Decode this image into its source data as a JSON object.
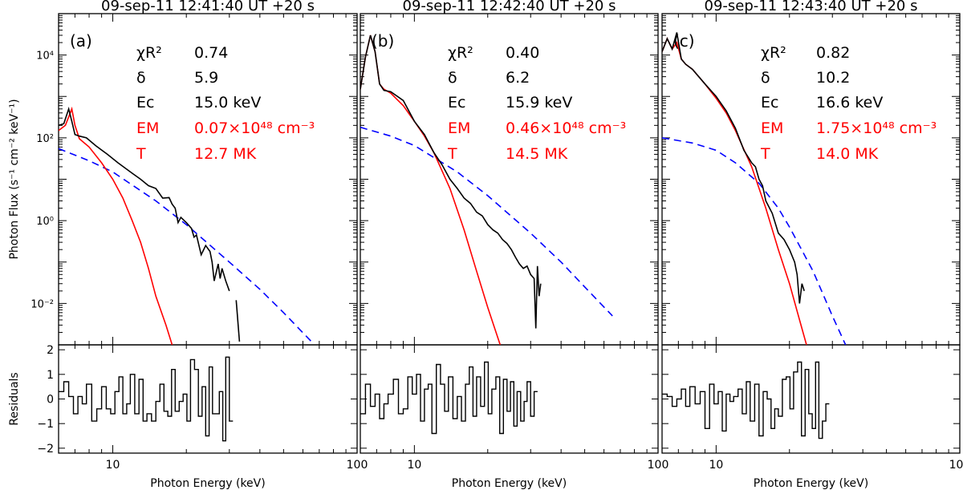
{
  "chart_data": [
    {
      "type": "line",
      "panel_label": "(a)",
      "title": "09-sep-11 12:41:40 UT +20 s",
      "xlabel": "Photon Energy (keV)",
      "ylabel": "Photon Flux (s⁻¹ cm⁻² keV⁻¹)",
      "residuals_ylabel": "Residuals",
      "xscale": "log",
      "yscale": "log",
      "xlim": [
        6,
        100
      ],
      "ylim": [
        0.001,
        100000
      ],
      "residuals_ylim": [
        -2.2,
        2.2
      ],
      "x_tick_labels": [
        "10",
        "100"
      ],
      "y_tick_labels": [
        "10⁻²",
        "10⁰",
        "10²",
        "10⁴"
      ],
      "residual_tick_labels": [
        "2",
        "1",
        "0",
        "−1",
        "−2"
      ],
      "legend": {
        "chi_label": "χR²",
        "chi_value": "0.74",
        "delta_label": "δ",
        "delta_value": "5.9",
        "ec_label": "Ec",
        "ec_value": "15.0 keV",
        "em_label": "EM",
        "em_value": "0.07×10⁴⁸ cm⁻³",
        "t_label": "T",
        "t_value": "12.7 MK"
      },
      "thermal": {
        "x": [
          6.0,
          6.4,
          6.8,
          7.0,
          7.3,
          8.0,
          9.0,
          10.0,
          11.0,
          12.0,
          13.0,
          14.0,
          15.0,
          16.5,
          17.5
        ],
        "y": [
          150,
          200,
          500,
          200,
          95,
          60,
          25,
          10,
          3.5,
          1.0,
          0.3,
          0.07,
          0.015,
          0.003,
          0.001
        ]
      },
      "nonthermal": {
        "x": [
          6,
          8,
          10,
          15,
          20,
          30,
          40,
          50,
          65
        ],
        "y": [
          55,
          28,
          15,
          3.0,
          0.8,
          0.1,
          0.022,
          0.006,
          0.0012
        ]
      },
      "observed": {
        "x": [
          6.0,
          6.3,
          6.6,
          6.8,
          7.0,
          7.3,
          7.8,
          8.5,
          9.5,
          10.5,
          12.0,
          13.0,
          14.0,
          15.0,
          16.0,
          17.0,
          17.5,
          18.0,
          18.5,
          19.0,
          20.0,
          21.0,
          21.5,
          22.0,
          23.0,
          24.0,
          25.0,
          25.5,
          26.0,
          27.0,
          27.5,
          28.0,
          29.0,
          30.0
        ],
        "y": [
          200,
          220,
          500,
          250,
          120,
          110,
          100,
          65,
          40,
          25,
          14,
          10,
          7,
          6,
          3.5,
          3.6,
          2.5,
          2.0,
          0.9,
          1.2,
          0.9,
          0.65,
          0.4,
          0.45,
          0.15,
          0.25,
          0.18,
          0.1,
          0.035,
          0.09,
          0.04,
          0.07,
          0.035,
          0.02
        ]
      },
      "observed_tail": {
        "x": [
          32.0,
          33.0
        ],
        "y": [
          0.012,
          0.0012
        ]
      },
      "residuals": {
        "x": [
          6.0,
          6.3,
          6.6,
          6.9,
          7.2,
          7.5,
          7.8,
          8.2,
          8.6,
          9.0,
          9.4,
          9.8,
          10.2,
          10.6,
          11.0,
          11.4,
          11.8,
          12.3,
          12.8,
          13.3,
          13.8,
          14.4,
          15.0,
          15.6,
          16.2,
          16.8,
          17.4,
          18.0,
          18.7,
          19.4,
          20.1,
          20.8,
          21.6,
          22.4,
          23.2,
          24.0,
          24.8,
          25.6,
          26.4,
          27.3,
          28.2,
          29.0,
          30.0
        ],
        "y": [
          0.3,
          0.7,
          0.1,
          -0.6,
          0.1,
          -0.2,
          0.6,
          -0.9,
          -0.4,
          0.5,
          -0.4,
          -0.6,
          0.3,
          0.9,
          -0.6,
          -0.2,
          1.0,
          -0.6,
          0.8,
          -0.9,
          -0.6,
          -0.9,
          -0.1,
          0.6,
          -0.5,
          -0.7,
          1.2,
          -0.5,
          -0.1,
          0.2,
          -0.9,
          1.6,
          1.2,
          -0.7,
          0.5,
          -1.5,
          1.3,
          -0.6,
          -0.6,
          0.3,
          -1.7,
          1.7,
          -0.9
        ]
      }
    },
    {
      "type": "line",
      "panel_label": "(b)",
      "title": "09-sep-11 12:42:40 UT +20 s",
      "xlabel": "Photon Energy (keV)",
      "xscale": "log",
      "yscale": "log",
      "xlim": [
        6,
        100
      ],
      "ylim": [
        0.001,
        100000
      ],
      "residuals_ylim": [
        -2.2,
        2.2
      ],
      "x_tick_labels": [
        "10",
        "100"
      ],
      "legend": {
        "chi_label": "χR²",
        "chi_value": "0.40",
        "delta_label": "δ",
        "delta_value": "6.2",
        "ec_label": "Ec",
        "ec_value": "15.9 keV",
        "em_label": "EM",
        "em_value": "0.46×10⁴⁸ cm⁻³",
        "t_label": "T",
        "t_value": "14.5 MK"
      },
      "thermal": {
        "x": [
          6.0,
          6.3,
          6.6,
          6.9,
          7.2,
          7.5,
          8.0,
          9.0,
          10.0,
          11.0,
          12.0,
          14.0,
          16.0,
          18.0,
          20.0,
          22.5
        ],
        "y": [
          1500,
          9000,
          30000,
          12000,
          2000,
          1500,
          1200,
          600,
          250,
          110,
          45,
          6,
          0.6,
          0.06,
          0.008,
          0.001
        ]
      },
      "nonthermal": {
        "x": [
          6,
          8,
          10,
          15,
          20,
          30,
          40,
          50,
          65
        ],
        "y": [
          180,
          110,
          65,
          15,
          4.0,
          0.5,
          0.1,
          0.025,
          0.005
        ]
      },
      "observed": {
        "x": [
          6.0,
          6.3,
          6.6,
          6.9,
          7.2,
          7.5,
          8.0,
          9.0,
          10.0,
          11.0,
          12.0,
          13.0,
          14.0,
          15.0,
          16.0,
          17.0,
          18.0,
          19.0,
          20.0,
          21.0,
          22.0,
          23.0,
          24.0,
          25.0,
          26.0,
          27.0,
          28.0,
          29.0,
          30.0,
          31.0,
          31.5,
          32.0,
          32.5,
          33.0
        ],
        "y": [
          1500,
          9000,
          30000,
          12000,
          2000,
          1400,
          1300,
          800,
          250,
          120,
          45,
          22,
          10,
          6,
          3.5,
          2.6,
          1.6,
          1.3,
          0.8,
          0.6,
          0.5,
          0.35,
          0.28,
          0.2,
          0.13,
          0.09,
          0.07,
          0.08,
          0.05,
          0.04,
          0.0025,
          0.08,
          0.015,
          0.03
        ]
      },
      "residuals": {
        "x": [
          6.0,
          6.3,
          6.6,
          6.9,
          7.2,
          7.5,
          7.8,
          8.2,
          8.6,
          9.0,
          9.4,
          9.8,
          10.2,
          10.6,
          11.0,
          11.4,
          11.8,
          12.3,
          12.8,
          13.3,
          13.8,
          14.4,
          15.0,
          15.6,
          16.2,
          16.8,
          17.4,
          18.0,
          18.7,
          19.4,
          20.1,
          20.8,
          21.6,
          22.4,
          23.2,
          24.0,
          24.8,
          25.6,
          26.4,
          27.3,
          28.2,
          29.0,
          30.0,
          31.0
        ],
        "y": [
          -0.6,
          0.6,
          -0.3,
          0.2,
          -0.8,
          -0.2,
          0.2,
          0.8,
          -0.6,
          -0.4,
          0.9,
          0.2,
          1.0,
          -0.9,
          0.4,
          0.6,
          -1.4,
          1.4,
          0.6,
          -0.5,
          0.9,
          -0.8,
          0.1,
          -0.9,
          0.6,
          1.3,
          -0.7,
          0.9,
          -0.3,
          1.5,
          -0.6,
          0.4,
          0.9,
          -1.4,
          0.8,
          -0.5,
          0.7,
          -1.1,
          0.3,
          -0.9,
          -0.1,
          0.7,
          -0.7,
          0.3
        ]
      }
    },
    {
      "type": "line",
      "panel_label": "(c)",
      "title": "09-sep-11 12:43:40 UT +20 s",
      "xlabel": "Photon Energy (keV)",
      "xscale": "log",
      "yscale": "log",
      "xlim": [
        6,
        100
      ],
      "ylim": [
        0.001,
        100000
      ],
      "residuals_ylim": [
        -2.2,
        2.2
      ],
      "x_tick_labels": [
        "10",
        "100"
      ],
      "legend": {
        "chi_label": "χR²",
        "chi_value": "0.82",
        "delta_label": "δ",
        "delta_value": "10.2",
        "ec_label": "Ec",
        "ec_value": "16.6 keV",
        "em_label": "EM",
        "em_value": "1.75×10⁴⁸ cm⁻³",
        "t_label": "T",
        "t_value": "14.0 MK"
      },
      "thermal": {
        "x": [
          6.0,
          6.3,
          6.6,
          6.9,
          7.2,
          7.5,
          8.0,
          9.0,
          10.0,
          11.0,
          12.0,
          14.0,
          16.0,
          18.0,
          20.0,
          22.0,
          23.5
        ],
        "y": [
          12000,
          25000,
          14000,
          20000,
          8000,
          6000,
          4500,
          2000,
          900,
          400,
          150,
          20,
          2.0,
          0.2,
          0.03,
          0.004,
          0.001
        ]
      },
      "nonthermal": {
        "x": [
          6,
          8,
          10,
          12,
          15,
          18,
          20,
          25,
          30,
          34
        ],
        "y": [
          100,
          75,
          50,
          25,
          8,
          2.0,
          0.7,
          0.06,
          0.005,
          0.001
        ]
      },
      "observed": {
        "x": [
          6.0,
          6.3,
          6.6,
          6.9,
          7.2,
          7.5,
          8.0,
          9.0,
          10.0,
          11.0,
          12.0,
          13.0,
          14.0,
          14.5,
          15.0,
          15.5,
          16.0,
          17.0,
          18.0,
          19.0,
          20.0,
          21.0,
          21.5,
          22.0,
          22.5,
          23.0
        ],
        "y": [
          12000,
          25000,
          14000,
          35000,
          8000,
          6000,
          4500,
          2000,
          1000,
          450,
          170,
          50,
          25,
          20,
          10,
          7,
          3,
          1.5,
          0.5,
          0.35,
          0.2,
          0.1,
          0.05,
          0.01,
          0.03,
          0.02
        ]
      },
      "residuals": {
        "x": [
          6.0,
          6.3,
          6.6,
          6.9,
          7.2,
          7.5,
          7.8,
          8.2,
          8.6,
          9.0,
          9.4,
          9.8,
          10.2,
          10.6,
          11.0,
          11.4,
          11.8,
          12.3,
          12.8,
          13.3,
          13.8,
          14.4,
          15.0,
          15.6,
          16.2,
          16.8,
          17.4,
          18.0,
          18.7,
          19.4,
          20.1,
          20.8,
          21.6,
          22.4,
          23.2,
          24.0,
          24.8,
          25.6,
          26.4,
          27.3,
          28.2
        ],
        "y": [
          0.2,
          0.1,
          -0.3,
          0.0,
          0.4,
          -0.3,
          0.5,
          -0.2,
          0.3,
          -1.2,
          0.6,
          -0.2,
          0.3,
          -1.3,
          0.2,
          -0.1,
          0.1,
          0.4,
          -0.6,
          0.7,
          -0.9,
          0.6,
          -1.5,
          0.3,
          0.0,
          -1.2,
          -0.4,
          -0.7,
          0.8,
          0.9,
          -0.4,
          1.1,
          1.5,
          -1.5,
          1.2,
          -0.6,
          -1.2,
          1.5,
          -1.6,
          -0.9,
          -0.2
        ]
      }
    }
  ],
  "colors": {
    "observed": "#000000",
    "thermal": "#ff0000",
    "nonthermal": "#0000ff",
    "legend_fit": "#000000",
    "legend_thermal": "#ff0000"
  }
}
